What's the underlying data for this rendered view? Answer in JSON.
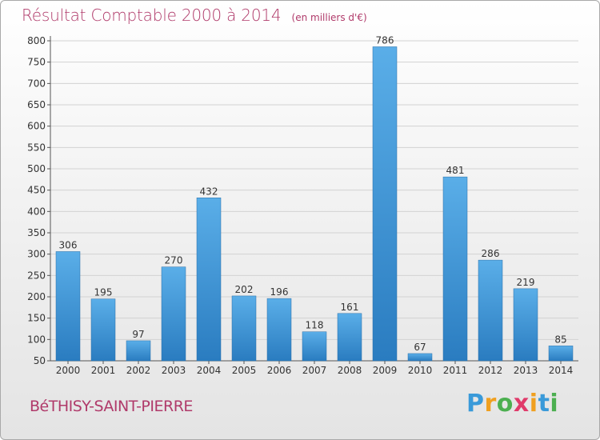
{
  "title": "Résultat Comptable 2000 à 2014",
  "unit": "(en milliers d'€)",
  "commune": "BéTHISY-SAINT-PIERRE",
  "logo": {
    "p": "P",
    "r": "r",
    "o": "o",
    "x": "x",
    "i1": "i",
    "t": "t",
    "i2": "i"
  },
  "colors": {
    "bar_top": "#5aaee8",
    "bar_bottom": "#2a7cc0",
    "title": "#b03a6a"
  },
  "chart_data": {
    "type": "bar",
    "title": "Résultat Comptable 2000 à 2014",
    "ylabel": "(en milliers d'€)",
    "categories": [
      "2000",
      "2001",
      "2002",
      "2003",
      "2004",
      "2005",
      "2006",
      "2007",
      "2008",
      "2009",
      "2010",
      "2011",
      "2012",
      "2013",
      "2014"
    ],
    "values": [
      306,
      195,
      97,
      270,
      432,
      202,
      196,
      118,
      161,
      786,
      67,
      481,
      286,
      219,
      85
    ],
    "ylim": [
      50,
      800
    ],
    "yticks": [
      50,
      100,
      150,
      200,
      250,
      300,
      350,
      400,
      450,
      500,
      550,
      600,
      650,
      700,
      750,
      800
    ],
    "grid": true
  }
}
